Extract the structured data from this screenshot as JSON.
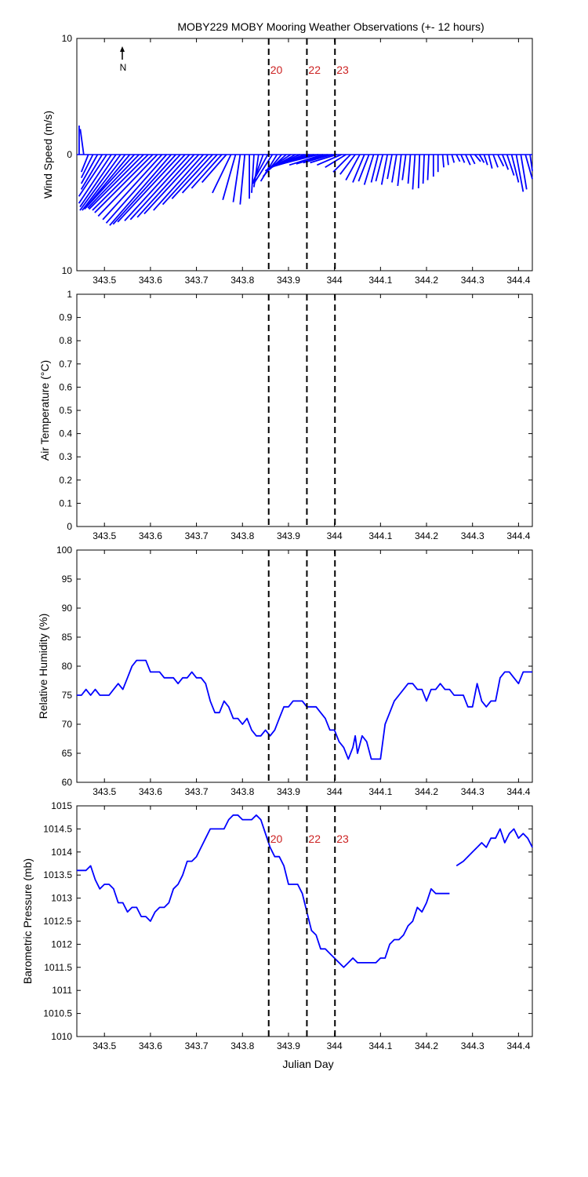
{
  "title": "MOBY229 MOBY Mooring Weather Observations (+- 12 hours)",
  "xlabel": "Julian Day",
  "north_label": "N",
  "colors": {
    "series": "#0000ff",
    "event": "#000000",
    "event_label": "#cc2222",
    "axes": "#000000"
  },
  "chart_data": [
    {
      "type": "line",
      "subtype": "wind-stick",
      "ylabel": "Wind Speed (m/s)",
      "xlim": [
        343.44,
        344.43
      ],
      "ylim": [
        -10,
        10
      ],
      "xticks": [
        "343.5",
        "343.6",
        "343.7",
        "343.8",
        "343.9",
        "344",
        "344.1",
        "344.2",
        "344.3",
        "344.4"
      ],
      "yticks": [
        "10",
        "0",
        "10"
      ],
      "event_labels": [
        "20",
        "22",
        "23"
      ],
      "series": [
        {
          "x": [
            343.445,
            343.455,
            343.465,
            343.475,
            343.485,
            343.495,
            343.505,
            343.515,
            343.525,
            343.535,
            343.545,
            343.555,
            343.565,
            343.575,
            343.585,
            343.595,
            343.605,
            343.615,
            343.625,
            343.635,
            343.645,
            343.655,
            343.665,
            343.675,
            343.685,
            343.695,
            343.705,
            343.715,
            343.725,
            343.735,
            343.745,
            343.755,
            343.765,
            343.775,
            343.785,
            343.795,
            343.805,
            343.815,
            343.825,
            343.835,
            343.845,
            343.855,
            343.865,
            343.875,
            343.885,
            343.895,
            343.905,
            343.915,
            343.925,
            343.935,
            343.945,
            343.955,
            343.965,
            343.975,
            343.985,
            343.995,
            344.005,
            344.015,
            344.025,
            344.035,
            344.045,
            344.055,
            344.065,
            344.075,
            344.085,
            344.095,
            344.105,
            344.115,
            344.125,
            344.135,
            344.145,
            344.155,
            344.165,
            344.175,
            344.185,
            344.195,
            344.205,
            344.215,
            344.225,
            344.235,
            344.245,
            344.255,
            344.265,
            344.275,
            344.285,
            344.295,
            344.305,
            344.315,
            344.325,
            344.335,
            344.345,
            344.355,
            344.365,
            344.375,
            344.385,
            344.395,
            344.405,
            344.415,
            344.425
          ],
          "u": [
            0,
            -0.3,
            -0.6,
            -1,
            -1.4,
            -1.8,
            -2.4,
            -2.8,
            -3.1,
            -3.5,
            -3.7,
            -3.9,
            -4.2,
            -4.4,
            -4.7,
            -4.8,
            -5,
            -5.1,
            -5.1,
            -5.2,
            -5.3,
            -5.4,
            -5.4,
            -5.2,
            -5.1,
            -4.9,
            -4.7,
            -4.3,
            -3.9,
            -3.5,
            -3,
            -2.6,
            -2.1,
            -1.6,
            -1.1,
            -0.6,
            -0.4,
            0,
            -0.2,
            -0.4,
            -0.9,
            -1.2,
            -1.6,
            -1.4,
            -1.6,
            -1.8,
            -2.2,
            -2.4,
            -2.8,
            -2.9,
            -3.1,
            -3.4,
            -3.6,
            -2.9,
            -2.7,
            -2.5,
            -2.3,
            -2.1,
            -1.8,
            -1.5,
            -1.3,
            -1.2,
            -1,
            -0.9,
            -0.8,
            -0.6,
            -0.6,
            -0.5,
            -0.4,
            -0.4,
            -0.3,
            -0.3,
            -0.2,
            -0.2,
            -0.1,
            -0.1,
            -0.1,
            0,
            0,
            0.1,
            0.1,
            0.2,
            0.3,
            0.3,
            0.4,
            0.4,
            0.5,
            0.4,
            0.3,
            0.3,
            0.4,
            0.5,
            0.5,
            0.6,
            0.6,
            0.6,
            0.5,
            0.6,
            0.7
          ],
          "v": [
            2.5,
            2.2,
            -1.5,
            -2,
            -2.5,
            -3,
            -3.6,
            -4.2,
            -4.5,
            -4.8,
            -4.8,
            -4.7,
            -4.6,
            -4.6,
            -4.7,
            -4.8,
            -5,
            -5.3,
            -5.6,
            -5.9,
            -6.1,
            -6,
            -5.8,
            -5.7,
            -5.6,
            -5.4,
            -5.1,
            -4.8,
            -4.3,
            -3.8,
            -3.3,
            -2.9,
            -2.4,
            -3.3,
            -3.9,
            -4.1,
            -4.3,
            -3.8,
            -3.3,
            -2.8,
            -2.5,
            -2.2,
            -2.5,
            -2.3,
            -1.9,
            -1.6,
            -1.4,
            -1.3,
            -1.2,
            -1.1,
            -1,
            -1,
            -0.9,
            -0.9,
            -0.8,
            -0.7,
            -0.7,
            -0.9,
            -1.1,
            -1.5,
            -1.7,
            -2.2,
            -2.4,
            -2.3,
            -2.6,
            -2.4,
            -2.3,
            -2.6,
            -2.1,
            -2.4,
            -2.7,
            -2.2,
            -2.5,
            -3,
            -2.9,
            -2.5,
            -2.2,
            -1.9,
            -1.5,
            -1.1,
            -0.9,
            -0.7,
            -0.6,
            -0.7,
            -0.9,
            -0.8,
            -0.6,
            -0.7,
            -0.9,
            -1.2,
            -1.1,
            -1,
            -1.3,
            -1.8,
            -2.4,
            -3.2,
            -3,
            -2.1,
            -1.4
          ]
        }
      ]
    },
    {
      "type": "line",
      "ylabel": "Air Temperature (°C)",
      "xlim": [
        343.44,
        344.43
      ],
      "ylim": [
        0,
        1
      ],
      "xticks": [
        "343.5",
        "343.6",
        "343.7",
        "343.8",
        "343.9",
        "344",
        "344.1",
        "344.2",
        "344.3",
        "344.4"
      ],
      "yticks": [
        "0",
        "0.1",
        "0.2",
        "0.3",
        "0.4",
        "0.5",
        "0.6",
        "0.7",
        "0.8",
        "0.9",
        "1"
      ],
      "series": []
    },
    {
      "type": "line",
      "ylabel": "Relative Humidity (%)",
      "xlim": [
        343.44,
        344.43
      ],
      "ylim": [
        60,
        100
      ],
      "xticks": [
        "343.5",
        "343.6",
        "343.7",
        "343.8",
        "343.9",
        "344",
        "344.1",
        "344.2",
        "344.3",
        "344.4"
      ],
      "yticks": [
        "60",
        "65",
        "70",
        "75",
        "80",
        "85",
        "90",
        "95",
        "100"
      ],
      "series": [
        {
          "x": [
            343.44,
            343.45,
            343.46,
            343.47,
            343.48,
            343.49,
            343.5,
            343.51,
            343.52,
            343.53,
            343.54,
            343.55,
            343.56,
            343.57,
            343.58,
            343.59,
            343.6,
            343.61,
            343.62,
            343.63,
            343.64,
            343.65,
            343.66,
            343.67,
            343.68,
            343.69,
            343.7,
            343.71,
            343.72,
            343.73,
            343.74,
            343.75,
            343.76,
            343.77,
            343.78,
            343.79,
            343.8,
            343.81,
            343.82,
            343.83,
            343.84,
            343.85,
            343.86,
            343.87,
            343.88,
            343.89,
            343.9,
            343.91,
            343.92,
            343.93,
            343.94,
            343.95,
            343.96,
            343.97,
            343.98,
            343.99,
            344,
            344.01,
            344.02,
            344.03,
            344.04,
            344.045,
            344.05,
            344.06,
            344.07,
            344.08,
            344.09,
            344.1,
            344.11,
            344.12,
            344.13,
            344.14,
            344.15,
            344.16,
            344.17,
            344.18,
            344.19,
            344.2,
            344.21,
            344.22,
            344.23,
            344.24,
            344.25,
            344.26,
            344.27,
            344.28,
            344.29,
            344.3,
            344.31,
            344.32,
            344.33,
            344.34,
            344.35,
            344.36,
            344.37,
            344.38,
            344.39,
            344.4,
            344.41,
            344.42,
            344.43
          ],
          "y": [
            75,
            75,
            76,
            75,
            76,
            75,
            75,
            75,
            76,
            77,
            76,
            78,
            80,
            81,
            81,
            81,
            79,
            79,
            79,
            78,
            78,
            78,
            77,
            78,
            78,
            79,
            78,
            78,
            77,
            74,
            72,
            72,
            74,
            73,
            71,
            71,
            70,
            71,
            69,
            68,
            68,
            69,
            68,
            69,
            71,
            73,
            73,
            74,
            74,
            74,
            73,
            73,
            73,
            72,
            71,
            69,
            69,
            67,
            66,
            64,
            66,
            68,
            65,
            68,
            67,
            64,
            64,
            64,
            70,
            72,
            74,
            75,
            76,
            77,
            77,
            76,
            76,
            74,
            76,
            76,
            77,
            76,
            76,
            75,
            75,
            75,
            73,
            73,
            77,
            74,
            73,
            74,
            74,
            78,
            79,
            79,
            78,
            77,
            79,
            79,
            79
          ]
        }
      ]
    },
    {
      "type": "line",
      "ylabel": "Barometric Pressure (mb)",
      "xlim": [
        343.44,
        344.43
      ],
      "ylim": [
        1010,
        1015
      ],
      "xticks": [
        "343.5",
        "343.6",
        "343.7",
        "343.8",
        "343.9",
        "344",
        "344.1",
        "344.2",
        "344.3",
        "344.4"
      ],
      "yticks": [
        "1010",
        "1010.5",
        "1011",
        "1011.5",
        "1012",
        "1012.5",
        "1013",
        "1013.5",
        "1014",
        "1014.5",
        "1015"
      ],
      "event_labels": [
        "20",
        "22",
        "23"
      ],
      "series": [
        {
          "x": [
            343.44,
            343.45,
            343.46,
            343.47,
            343.48,
            343.49,
            343.5,
            343.51,
            343.52,
            343.53,
            343.54,
            343.55,
            343.56,
            343.57,
            343.58,
            343.59,
            343.6,
            343.61,
            343.62,
            343.63,
            343.64,
            343.65,
            343.66,
            343.67,
            343.68,
            343.69,
            343.7,
            343.71,
            343.72,
            343.73,
            343.74,
            343.75,
            343.76,
            343.77,
            343.78,
            343.79,
            343.8,
            343.81,
            343.82,
            343.83,
            343.84,
            343.85,
            343.86,
            343.87,
            343.88,
            343.89,
            343.9,
            343.91,
            343.92,
            343.93,
            343.94,
            343.95,
            343.96,
            343.97,
            343.98,
            343.99,
            344,
            344.01,
            344.02,
            344.03,
            344.04,
            344.05,
            344.06,
            344.07,
            344.08,
            344.09,
            344.1,
            344.11,
            344.12,
            344.13,
            344.14,
            344.15,
            344.16,
            344.17,
            344.18,
            344.19,
            344.2,
            344.21,
            344.22,
            344.23,
            344.24,
            344.25
          ],
          "y": [
            1013.6,
            1013.6,
            1013.6,
            1013.7,
            1013.4,
            1013.2,
            1013.3,
            1013.3,
            1013.2,
            1012.9,
            1012.9,
            1012.7,
            1012.8,
            1012.8,
            1012.6,
            1012.6,
            1012.5,
            1012.7,
            1012.8,
            1012.8,
            1012.9,
            1013.2,
            1013.3,
            1013.5,
            1013.8,
            1013.8,
            1013.9,
            1014.1,
            1014.3,
            1014.5,
            1014.5,
            1014.5,
            1014.5,
            1014.7,
            1014.8,
            1014.8,
            1014.7,
            1014.7,
            1014.7,
            1014.8,
            1014.7,
            1014.4,
            1014.1,
            1013.9,
            1013.9,
            1013.7,
            1013.3,
            1013.3,
            1013.3,
            1013.1,
            1012.7,
            1012.3,
            1012.2,
            1011.9,
            1011.9,
            1011.8,
            1011.7,
            1011.6,
            1011.5,
            1011.6,
            1011.7,
            1011.6,
            1011.6,
            1011.6,
            1011.6,
            1011.6,
            1011.7,
            1011.7,
            1012,
            1012.1,
            1012.1,
            1012.2,
            1012.4,
            1012.5,
            1012.8,
            1012.7,
            1012.9,
            1013.2,
            1013.1,
            1013.1,
            1013.1,
            1013.1
          ]
        },
        {
          "x": [
            344.265,
            344.28,
            344.29,
            344.3,
            344.31,
            344.32,
            344.33,
            344.34,
            344.35,
            344.36,
            344.37,
            344.38,
            344.39,
            344.4,
            344.41,
            344.42,
            344.43
          ],
          "y": [
            1013.7,
            1013.8,
            1013.9,
            1014,
            1014.1,
            1014.2,
            1014.1,
            1014.3,
            1014.3,
            1014.5,
            1014.2,
            1014.4,
            1014.5,
            1014.3,
            1014.4,
            1014.3,
            1014.1
          ]
        }
      ]
    }
  ],
  "event_lines_x": [
    343.857,
    343.94,
    344.001
  ]
}
